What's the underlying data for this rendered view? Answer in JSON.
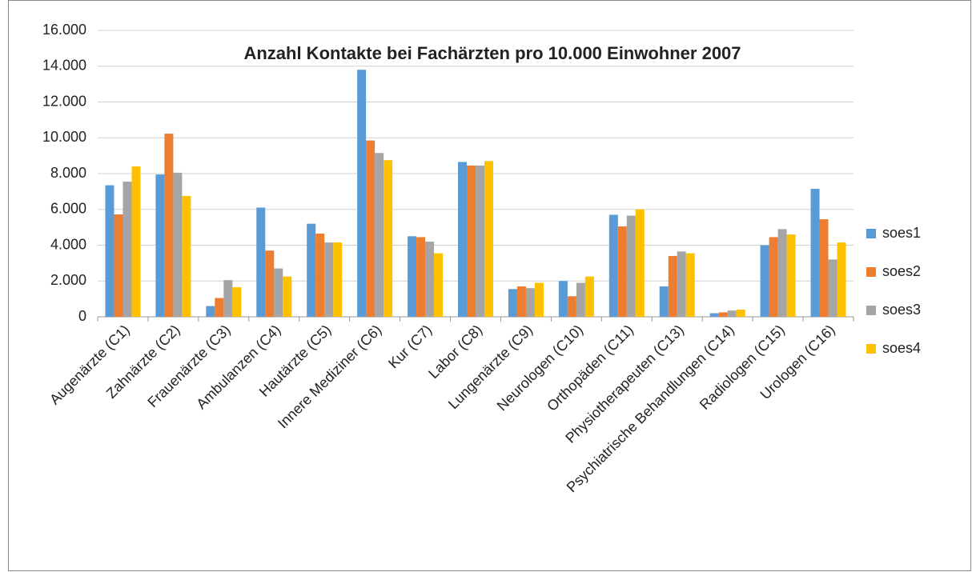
{
  "chart_data": {
    "type": "bar",
    "title": "Anzahl Kontakte bei Fachärzten pro 10.000 Einwohner 2007",
    "categories": [
      "Augenärzte (C1)",
      "Zahnärzte (C2)",
      "Frauenärzte (C3)",
      "Ambulanzen (C4)",
      "Hautärzte (C5)",
      "Innere Mediziner (C6)",
      "Kur (C7)",
      "Labor (C8)",
      "Lungenärzte (C9)",
      "Neurologen (C10)",
      "Orthopäden (C11)",
      "Physiotherapeuten (C13)",
      "Psychiatrische Behandlungen (C14)",
      "Radiologen (C15)",
      "Urologen (C16)"
    ],
    "series": [
      {
        "name": "soes1",
        "color": "#5b9bd5",
        "values": [
          7350,
          7950,
          600,
          6100,
          5200,
          13800,
          4500,
          8650,
          1550,
          2000,
          5700,
          1700,
          200,
          4000,
          7150
        ]
      },
      {
        "name": "soes2",
        "color": "#ed7d31",
        "values": [
          5720,
          10230,
          1050,
          3700,
          4650,
          9850,
          4450,
          8450,
          1700,
          1150,
          5050,
          3400,
          250,
          4450,
          5450
        ]
      },
      {
        "name": "soes3",
        "color": "#a5a5a5",
        "values": [
          7550,
          8050,
          2050,
          2700,
          4150,
          9150,
          4200,
          8450,
          1600,
          1900,
          5650,
          3650,
          350,
          4900,
          3200
        ]
      },
      {
        "name": "soes4",
        "color": "#ffc000",
        "values": [
          8400,
          6750,
          1650,
          2250,
          4150,
          8750,
          3550,
          8700,
          1900,
          2250,
          6000,
          3550,
          400,
          4600,
          4150
        ]
      }
    ],
    "ylim": [
      0,
      16000
    ],
    "yticks": [
      0,
      {
        "value": 2000,
        "label": "2.000"
      },
      {
        "value": 4000,
        "label": "4.000"
      },
      {
        "value": 6000,
        "label": "6.000"
      },
      {
        "value": 8000,
        "label": "8.000"
      },
      {
        "value": 10000,
        "label": "10.000"
      },
      {
        "value": 12000,
        "label": "12.000"
      },
      {
        "value": 14000,
        "label": "14.000"
      },
      {
        "value": 16000,
        "label": "16.000"
      }
    ],
    "grid": true,
    "legend": "right"
  }
}
